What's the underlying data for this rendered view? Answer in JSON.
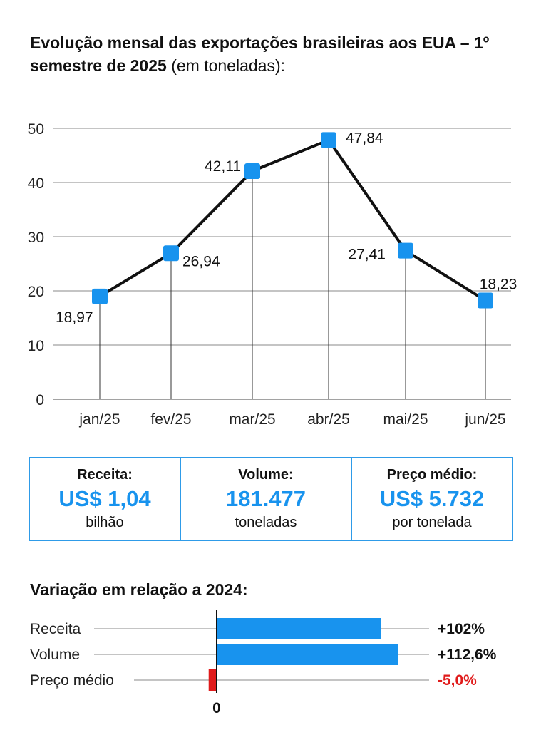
{
  "title": {
    "bold": "Evolução mensal das exportações brasileiras aos EUA – 1º semestre de 2025",
    "light": " (em toneladas):"
  },
  "chart_data": [
    {
      "type": "line",
      "categories": [
        "jan/25",
        "fev/25",
        "mar/25",
        "abr/25",
        "mai/25",
        "jun/25"
      ],
      "values": [
        18.97,
        26.94,
        42.11,
        47.84,
        27.41,
        18.23
      ],
      "data_labels": [
        "18,97",
        "26,94",
        "42,11",
        "47,84",
        "27,41",
        "18,23"
      ],
      "yticks": [
        0,
        10,
        20,
        30,
        40,
        50
      ],
      "ylim": [
        0,
        50
      ],
      "grid": true,
      "line_color": "#111111",
      "marker_color": "#1893ee"
    },
    {
      "type": "bar",
      "orientation": "horizontal",
      "title": "Variação em relação a 2024:",
      "categories": [
        "Receita",
        "Volume",
        "Preço médio"
      ],
      "values": [
        102,
        112.6,
        -5.0
      ],
      "value_labels": [
        "+102%",
        "+112,6%",
        "-5,0%"
      ],
      "zero_label": "0",
      "positive_color": "#1893ee",
      "negative_color": "#e01b1b"
    }
  ],
  "stats": [
    {
      "label": "Receita:",
      "value": "US$ 1,04",
      "unit": "bilhão"
    },
    {
      "label": "Volume:",
      "value": "181.477",
      "unit": "toneladas"
    },
    {
      "label": "Preço médio:",
      "value": "US$ 5.732",
      "unit": "por tonelada"
    }
  ],
  "colors": {
    "accent": "#1893ee",
    "border": "#2e9be8",
    "negative": "#e01b1b"
  }
}
